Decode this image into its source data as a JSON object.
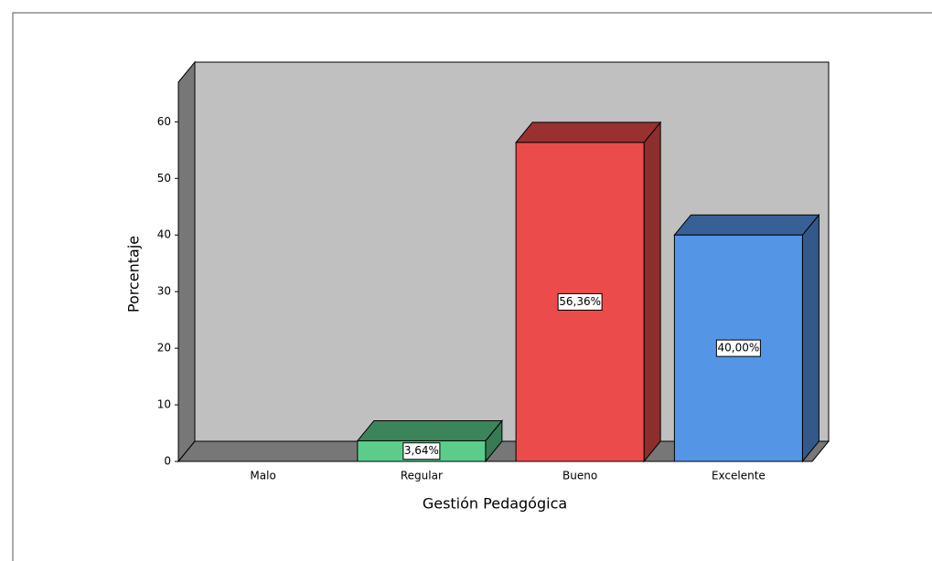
{
  "chart_data": {
    "type": "bar3d",
    "categories": [
      "Malo",
      "Regular",
      "Bueno",
      "Excelente"
    ],
    "values": [
      null,
      3.64,
      56.36,
      40
    ],
    "value_labels": [
      null,
      "3,64%",
      "56,36%",
      "40,00%"
    ],
    "colors": [
      "#9a9a9a",
      "#5ccc8a",
      "#ec4b4b",
      "#5595e6"
    ],
    "xlabel": "Gestión Pedagógica",
    "ylabel": "Porcentaje",
    "ylim": [
      0,
      67
    ],
    "yticks": [
      0,
      10,
      20,
      30,
      40,
      50,
      60
    ]
  }
}
